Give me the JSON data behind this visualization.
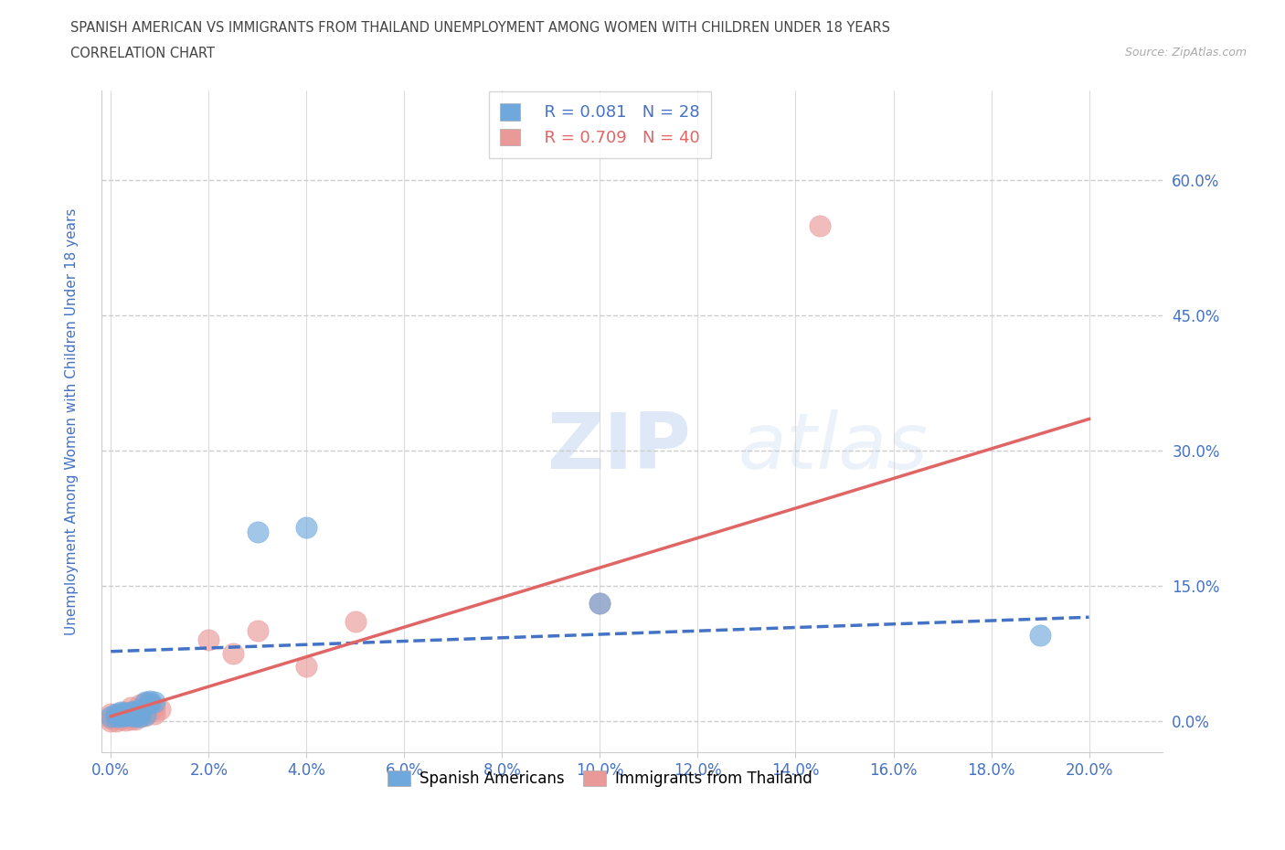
{
  "title_line1": "SPANISH AMERICAN VS IMMIGRANTS FROM THAILAND UNEMPLOYMENT AMONG WOMEN WITH CHILDREN UNDER 18 YEARS",
  "title_line2": "CORRELATION CHART",
  "source_text": "Source: ZipAtlas.com",
  "xlabel_ticks": [
    "0.0%",
    "2.0%",
    "4.0%",
    "6.0%",
    "8.0%",
    "10.0%",
    "12.0%",
    "14.0%",
    "16.0%",
    "18.0%",
    "20.0%"
  ],
  "ylabel": "Unemployment Among Women with Children Under 18 years",
  "ylabel_color": "#4472c4",
  "ytick_labels": [
    "0.0%",
    "15.0%",
    "30.0%",
    "45.0%",
    "60.0%"
  ],
  "ytick_positions": [
    0.0,
    0.15,
    0.3,
    0.45,
    0.6
  ],
  "xtick_positions": [
    0.0,
    0.02,
    0.04,
    0.06,
    0.08,
    0.1,
    0.12,
    0.14,
    0.16,
    0.18,
    0.2
  ],
  "xlim": [
    -0.002,
    0.215
  ],
  "ylim": [
    -0.035,
    0.7
  ],
  "legend_r1": "R = 0.081",
  "legend_n1": "N = 28",
  "legend_r2": "R = 0.709",
  "legend_n2": "N = 40",
  "blue_color": "#6fa8dc",
  "pink_color": "#ea9999",
  "blue_line_color": "#4472c4",
  "pink_line_color": "#e06666",
  "watermark_zip": "ZIP",
  "watermark_atlas": "atlas",
  "blue_scatter_x": [
    0.0,
    0.001,
    0.001,
    0.002,
    0.002,
    0.002,
    0.003,
    0.003,
    0.003,
    0.004,
    0.004,
    0.004,
    0.005,
    0.005,
    0.005,
    0.005,
    0.006,
    0.006,
    0.006,
    0.007,
    0.007,
    0.008,
    0.008,
    0.009,
    0.03,
    0.04,
    0.1,
    0.19
  ],
  "blue_scatter_y": [
    0.005,
    0.005,
    0.008,
    0.005,
    0.008,
    0.01,
    0.006,
    0.007,
    0.009,
    0.006,
    0.008,
    0.01,
    0.005,
    0.007,
    0.009,
    0.011,
    0.005,
    0.009,
    0.013,
    0.007,
    0.021,
    0.02,
    0.022,
    0.021,
    0.21,
    0.215,
    0.13,
    0.095
  ],
  "pink_scatter_x": [
    0.0,
    0.0,
    0.0,
    0.001,
    0.001,
    0.001,
    0.002,
    0.002,
    0.002,
    0.003,
    0.003,
    0.003,
    0.003,
    0.004,
    0.004,
    0.004,
    0.004,
    0.005,
    0.005,
    0.005,
    0.006,
    0.006,
    0.006,
    0.006,
    0.007,
    0.007,
    0.007,
    0.007,
    0.008,
    0.008,
    0.009,
    0.009,
    0.01,
    0.02,
    0.025,
    0.03,
    0.04,
    0.05,
    0.1,
    0.145
  ],
  "pink_scatter_y": [
    0.0,
    0.003,
    0.008,
    0.0,
    0.003,
    0.006,
    0.002,
    0.005,
    0.008,
    0.001,
    0.004,
    0.007,
    0.01,
    0.002,
    0.005,
    0.01,
    0.015,
    0.002,
    0.007,
    0.012,
    0.005,
    0.009,
    0.013,
    0.018,
    0.006,
    0.009,
    0.013,
    0.02,
    0.01,
    0.018,
    0.008,
    0.015,
    0.013,
    0.09,
    0.075,
    0.1,
    0.06,
    0.11,
    0.13,
    0.55
  ],
  "blue_trend_x": [
    0.0,
    0.2
  ],
  "blue_trend_y": [
    0.077,
    0.115
  ],
  "pink_trend_x": [
    0.0,
    0.2
  ],
  "pink_trend_y": [
    0.005,
    0.335
  ],
  "background_color": "#ffffff",
  "grid_color": "#cccccc",
  "tick_color": "#4472c4"
}
